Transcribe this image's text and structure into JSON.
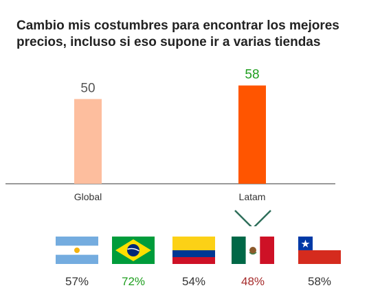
{
  "chart_data": {
    "type": "bar",
    "title": "Cambio mis costumbres para encontrar los mejores precios, incluso si eso supone ir a varias tiendas",
    "categories": [
      "Global",
      "Latam"
    ],
    "values": [
      50,
      58
    ],
    "value_labels": [
      "50",
      "58"
    ],
    "colors": [
      "#FDBE9E",
      "#FF5500"
    ],
    "value_label_colors": [
      "#555555",
      "#1E9E1E"
    ],
    "ylim": [
      0,
      70
    ],
    "grid": false
  },
  "countries": [
    {
      "flag_icon": "argentina-flag-icon",
      "value": "57%",
      "color": "#333333"
    },
    {
      "flag_icon": "brazil-flag-icon",
      "value": "72%",
      "color": "#1E9E1E"
    },
    {
      "flag_icon": "colombia-flag-icon",
      "value": "54%",
      "color": "#333333"
    },
    {
      "flag_icon": "mexico-flag-icon",
      "value": "48%",
      "color": "#A52A2A"
    },
    {
      "flag_icon": "chile-flag-icon",
      "value": "58%",
      "color": "#333333"
    }
  ]
}
